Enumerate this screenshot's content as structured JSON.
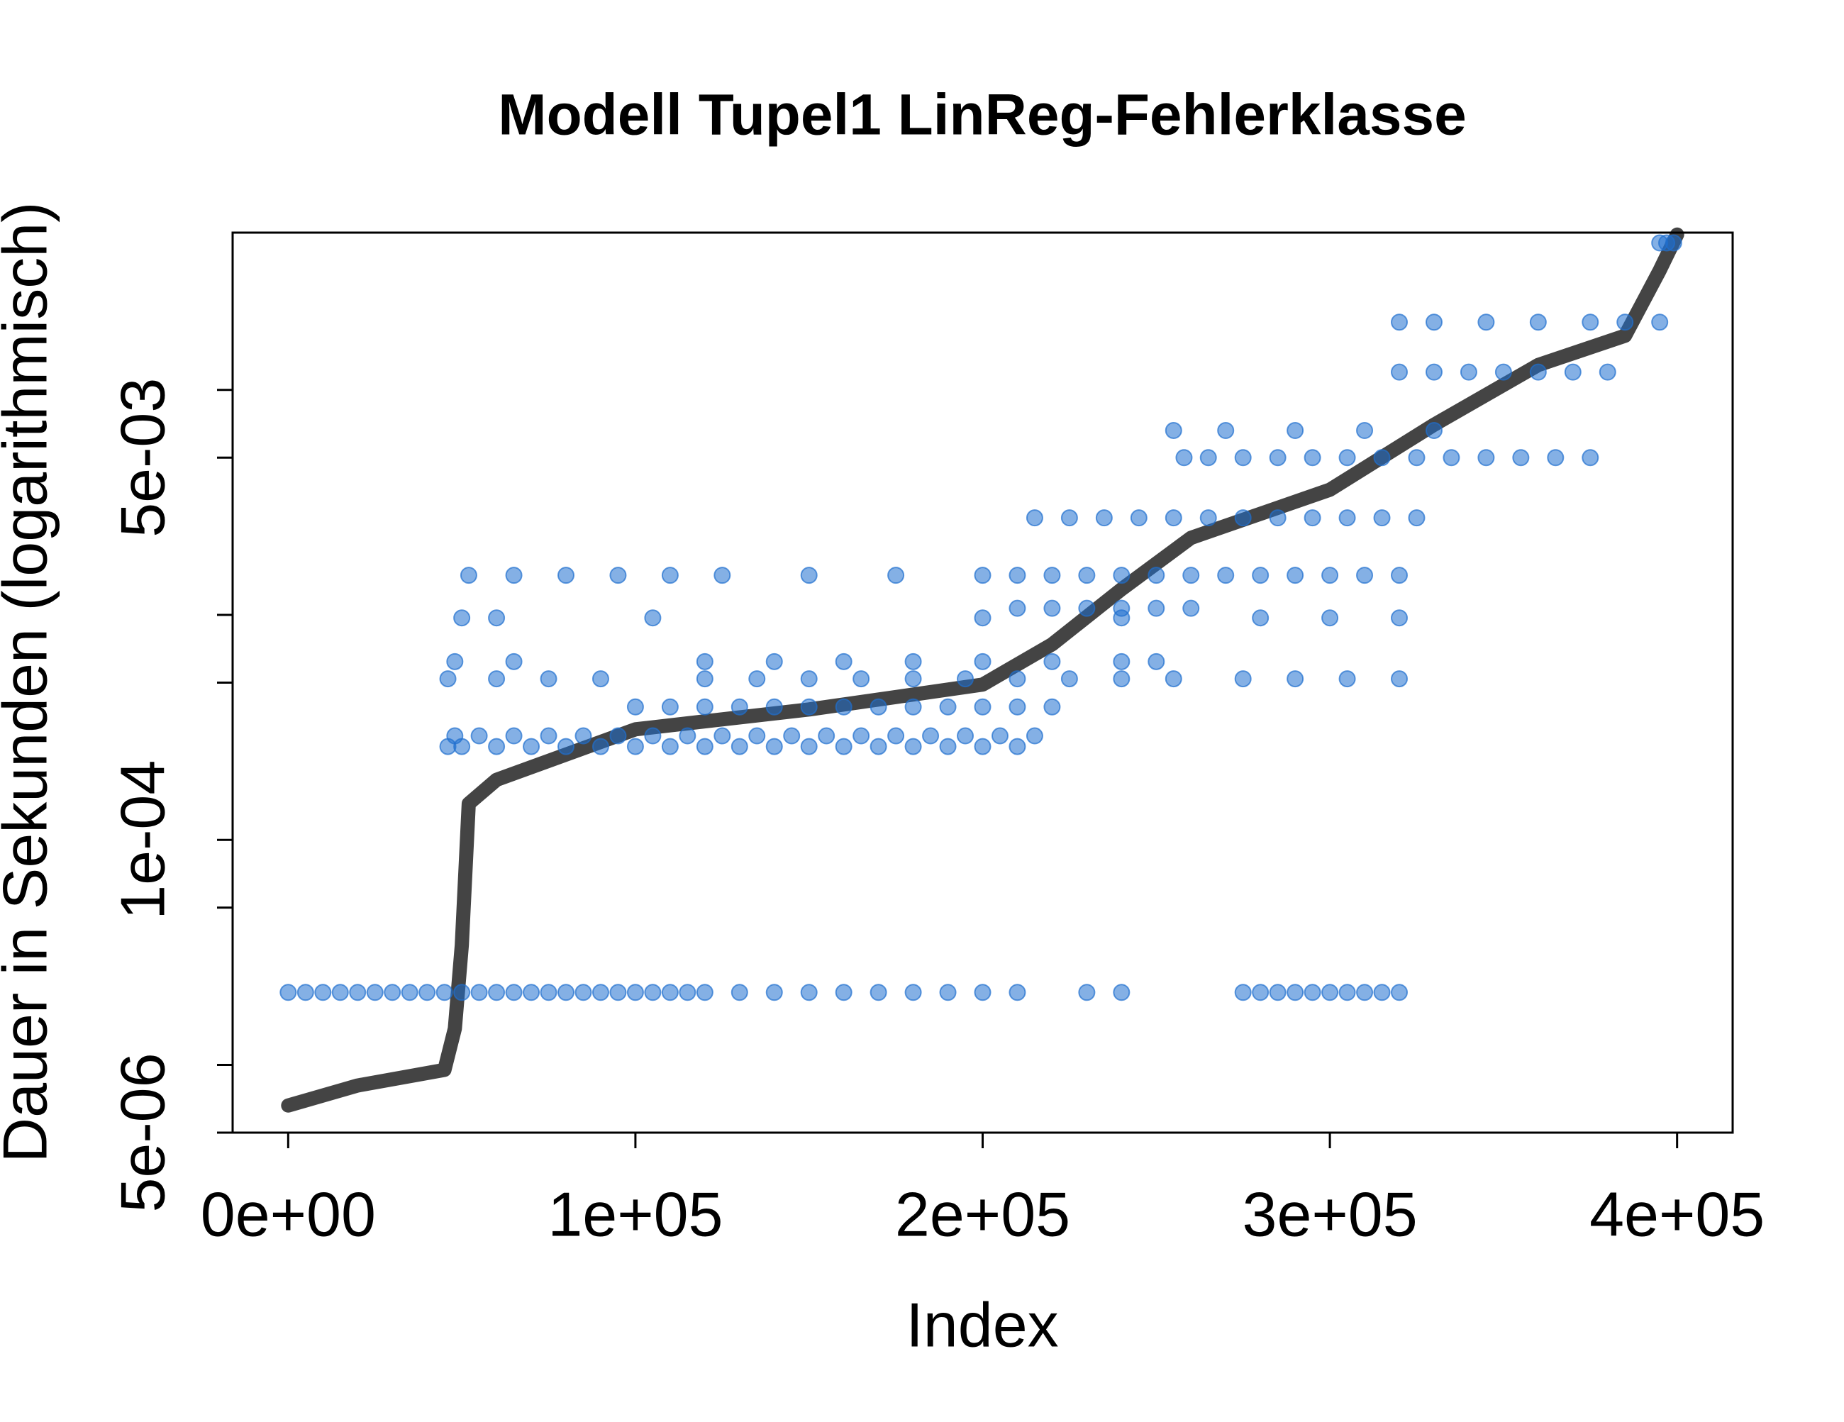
{
  "chart_data": {
    "type": "scatter",
    "title": "Modell Tupel1 LinReg-Fehlerklasse",
    "xlabel": "Index",
    "ylabel": "Dauer in Sekunden (logarithmisch)",
    "ylog": true,
    "xlim": [
      -16000,
      416000
    ],
    "ylim": [
      5e-06,
      0.05
    ],
    "xticks": [
      {
        "value": 0,
        "label": "0e+00"
      },
      {
        "value": 100000,
        "label": "1e+05"
      },
      {
        "value": 200000,
        "label": "2e+05"
      },
      {
        "value": 300000,
        "label": "3e+05"
      },
      {
        "value": 400000,
        "label": "4e+05"
      }
    ],
    "yticks": [
      {
        "value": 5e-06,
        "label": "5e-06"
      },
      {
        "value": 1e-05,
        "label": null
      },
      {
        "value": 5e-05,
        "label": null
      },
      {
        "value": 0.0001,
        "label": "1e-04"
      },
      {
        "value": 0.0005,
        "label": null
      },
      {
        "value": 0.001,
        "label": null
      },
      {
        "value": 0.005,
        "label": "5e-03"
      },
      {
        "value": 0.01,
        "label": null
      }
    ],
    "series": [
      {
        "type": "line",
        "color": "#444444",
        "x": [
          0,
          20000,
          45000,
          48000,
          50000,
          52000,
          60000,
          100000,
          150000,
          200000,
          220000,
          240000,
          260000,
          300000,
          330000,
          360000,
          385000,
          395000,
          400000
        ],
        "values": [
          6.6e-06,
          8.1e-06,
          9.5e-06,
          1.45e-05,
          3.4e-05,
          0.000145,
          0.000185,
          0.00031,
          0.00038,
          0.00049,
          0.00074,
          0.0013,
          0.0022,
          0.0036,
          0.007,
          0.0129,
          0.0174,
          0.034,
          0.049
        ]
      },
      {
        "type": "scatter",
        "color": "#1f6fcf",
        "x": [
          0,
          5000,
          10000,
          15000,
          20000,
          25000,
          30000,
          35000,
          40000,
          45000,
          50000,
          55000,
          60000,
          65000,
          70000,
          75000,
          80000,
          85000,
          90000,
          95000,
          100000,
          105000,
          110000,
          115000,
          120000,
          130000,
          140000,
          150000,
          160000,
          170000,
          180000,
          190000,
          200000,
          210000,
          230000,
          240000,
          275000,
          280000,
          285000,
          290000,
          295000,
          300000,
          305000,
          310000,
          315000,
          320000,
          46000,
          50000,
          60000,
          70000,
          80000,
          90000,
          100000,
          110000,
          120000,
          130000,
          140000,
          150000,
          160000,
          170000,
          180000,
          190000,
          200000,
          210000,
          48000,
          55000,
          65000,
          75000,
          85000,
          95000,
          105000,
          115000,
          125000,
          135000,
          145000,
          155000,
          165000,
          175000,
          185000,
          195000,
          205000,
          215000,
          100000,
          110000,
          120000,
          130000,
          140000,
          150000,
          160000,
          170000,
          180000,
          190000,
          200000,
          210000,
          220000,
          46000,
          60000,
          75000,
          90000,
          120000,
          135000,
          150000,
          165000,
          180000,
          195000,
          210000,
          225000,
          240000,
          255000,
          275000,
          290000,
          305000,
          320000,
          48000,
          65000,
          120000,
          140000,
          160000,
          180000,
          200000,
          220000,
          240000,
          250000,
          50000,
          60000,
          105000,
          200000,
          240000,
          280000,
          300000,
          320000,
          52000,
          65000,
          80000,
          95000,
          110000,
          125000,
          150000,
          175000,
          200000,
          210000,
          220000,
          230000,
          240000,
          250000,
          260000,
          270000,
          280000,
          290000,
          300000,
          310000,
          320000,
          210000,
          220000,
          230000,
          240000,
          250000,
          260000,
          215000,
          225000,
          235000,
          245000,
          255000,
          265000,
          275000,
          285000,
          295000,
          305000,
          315000,
          325000,
          258000,
          265000,
          275000,
          285000,
          295000,
          305000,
          315000,
          325000,
          335000,
          345000,
          355000,
          365000,
          375000,
          255000,
          270000,
          290000,
          310000,
          330000,
          320000,
          330000,
          340000,
          350000,
          360000,
          370000,
          380000,
          320000,
          330000,
          345000,
          360000,
          375000,
          385000,
          395000,
          395000,
          397000,
          399000
        ],
        "values": [
          2.1e-05,
          2.1e-05,
          2.1e-05,
          2.1e-05,
          2.1e-05,
          2.1e-05,
          2.1e-05,
          2.1e-05,
          2.1e-05,
          2.1e-05,
          2.1e-05,
          2.1e-05,
          2.1e-05,
          2.1e-05,
          2.1e-05,
          2.1e-05,
          2.1e-05,
          2.1e-05,
          2.1e-05,
          2.1e-05,
          2.1e-05,
          2.1e-05,
          2.1e-05,
          2.1e-05,
          2.1e-05,
          2.1e-05,
          2.1e-05,
          2.1e-05,
          2.1e-05,
          2.1e-05,
          2.1e-05,
          2.1e-05,
          2.1e-05,
          2.1e-05,
          2.1e-05,
          2.1e-05,
          2.1e-05,
          2.1e-05,
          2.1e-05,
          2.1e-05,
          2.1e-05,
          2.1e-05,
          2.1e-05,
          2.1e-05,
          2.1e-05,
          2.1e-05,
          0.00026,
          0.00026,
          0.00026,
          0.00026,
          0.00026,
          0.00026,
          0.00026,
          0.00026,
          0.00026,
          0.00026,
          0.00026,
          0.00026,
          0.00026,
          0.00026,
          0.00026,
          0.00026,
          0.00026,
          0.00026,
          0.00029,
          0.00029,
          0.00029,
          0.00029,
          0.00029,
          0.00029,
          0.00029,
          0.00029,
          0.00029,
          0.00029,
          0.00029,
          0.00029,
          0.00029,
          0.00029,
          0.00029,
          0.00029,
          0.00029,
          0.00029,
          0.00039,
          0.00039,
          0.00039,
          0.00039,
          0.00039,
          0.00039,
          0.00039,
          0.00039,
          0.00039,
          0.00039,
          0.00039,
          0.00039,
          0.00039,
          0.00052,
          0.00052,
          0.00052,
          0.00052,
          0.00052,
          0.00052,
          0.00052,
          0.00052,
          0.00052,
          0.00052,
          0.00052,
          0.00052,
          0.00052,
          0.00052,
          0.00052,
          0.00052,
          0.00052,
          0.00052,
          0.00062,
          0.00062,
          0.00062,
          0.00062,
          0.00062,
          0.00062,
          0.00062,
          0.00062,
          0.00062,
          0.00062,
          0.00097,
          0.00097,
          0.00097,
          0.00097,
          0.00097,
          0.00097,
          0.00097,
          0.00097,
          0.0015,
          0.0015,
          0.0015,
          0.0015,
          0.0015,
          0.0015,
          0.0015,
          0.0015,
          0.0015,
          0.0015,
          0.0015,
          0.0015,
          0.0015,
          0.0015,
          0.0015,
          0.0015,
          0.0015,
          0.0015,
          0.0015,
          0.0015,
          0.0015,
          0.00107,
          0.00107,
          0.00107,
          0.00107,
          0.00107,
          0.00107,
          0.0027,
          0.0027,
          0.0027,
          0.0027,
          0.0027,
          0.0027,
          0.0027,
          0.0027,
          0.0027,
          0.0027,
          0.0027,
          0.0027,
          0.005,
          0.005,
          0.005,
          0.005,
          0.005,
          0.005,
          0.005,
          0.005,
          0.005,
          0.005,
          0.005,
          0.005,
          0.005,
          0.0066,
          0.0066,
          0.0066,
          0.0066,
          0.0066,
          0.012,
          0.012,
          0.012,
          0.012,
          0.012,
          0.012,
          0.012,
          0.02,
          0.02,
          0.02,
          0.02,
          0.02,
          0.02,
          0.02,
          0.045,
          0.045,
          0.045
        ]
      }
    ]
  }
}
